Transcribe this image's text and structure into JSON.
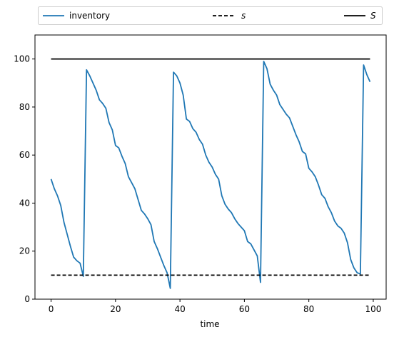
{
  "chart_data": {
    "type": "line",
    "xlabel": "time",
    "ylabel": "",
    "xlim": [
      -5,
      104
    ],
    "ylim": [
      0,
      110
    ],
    "xticks": [
      0,
      20,
      40,
      60,
      80,
      100
    ],
    "yticks": [
      0,
      20,
      40,
      60,
      80,
      100
    ],
    "grid": false,
    "legend": {
      "placement": "top, above plot",
      "columns": 3
    },
    "series": [
      {
        "name": "inventory",
        "color": "#1f77b4",
        "style": "solid",
        "x": [
          0,
          1,
          2,
          3,
          4,
          5,
          6,
          7,
          8,
          9,
          10,
          11,
          12,
          13,
          14,
          15,
          16,
          17,
          18,
          19,
          20,
          21,
          22,
          23,
          24,
          25,
          26,
          27,
          28,
          29,
          30,
          31,
          32,
          33,
          34,
          35,
          36,
          37,
          38,
          39,
          40,
          41,
          42,
          43,
          44,
          45,
          46,
          47,
          48,
          49,
          50,
          51,
          52,
          53,
          54,
          55,
          56,
          57,
          58,
          59,
          60,
          61,
          62,
          63,
          64,
          65,
          66,
          67,
          68,
          69,
          70,
          71,
          72,
          73,
          74,
          75,
          76,
          77,
          78,
          79,
          80,
          81,
          82,
          83,
          84,
          85,
          86,
          87,
          88,
          89,
          90,
          91,
          92,
          93,
          94,
          95,
          96,
          97,
          98,
          99
        ],
        "y": [
          50,
          46,
          43,
          39,
          32,
          27,
          22,
          17.5,
          16,
          15,
          9.5,
          95.5,
          93,
          90,
          87,
          83,
          81.5,
          79.5,
          73.5,
          70.5,
          64,
          63,
          59.5,
          56.5,
          51,
          48.5,
          46,
          41.5,
          37,
          35.5,
          33.5,
          31,
          24,
          21,
          17.5,
          14,
          11,
          4.5,
          94.5,
          93,
          90,
          85,
          75,
          74,
          71,
          69.5,
          66.5,
          64.5,
          60,
          57,
          55,
          52,
          50,
          43,
          39.5,
          37.5,
          36,
          33.5,
          31.5,
          30,
          28.5,
          24,
          23,
          20.5,
          18,
          7,
          99,
          96,
          89.5,
          87,
          85,
          81,
          79,
          77,
          75.5,
          72,
          68.5,
          65.5,
          61.5,
          60.5,
          54.5,
          53,
          51,
          47.5,
          43.5,
          42,
          38.5,
          36,
          32.5,
          30.5,
          29.5,
          27.5,
          23.5,
          16.5,
          13,
          11,
          10.5,
          97.5,
          93.5,
          90.5
        ]
      },
      {
        "name": "s",
        "color": "#000000",
        "style": "dashed",
        "x": [
          0,
          99
        ],
        "y": [
          10,
          10
        ]
      },
      {
        "name": "S",
        "color": "#000000",
        "style": "solid",
        "x": [
          0,
          99
        ],
        "y": [
          100,
          100
        ]
      }
    ]
  }
}
